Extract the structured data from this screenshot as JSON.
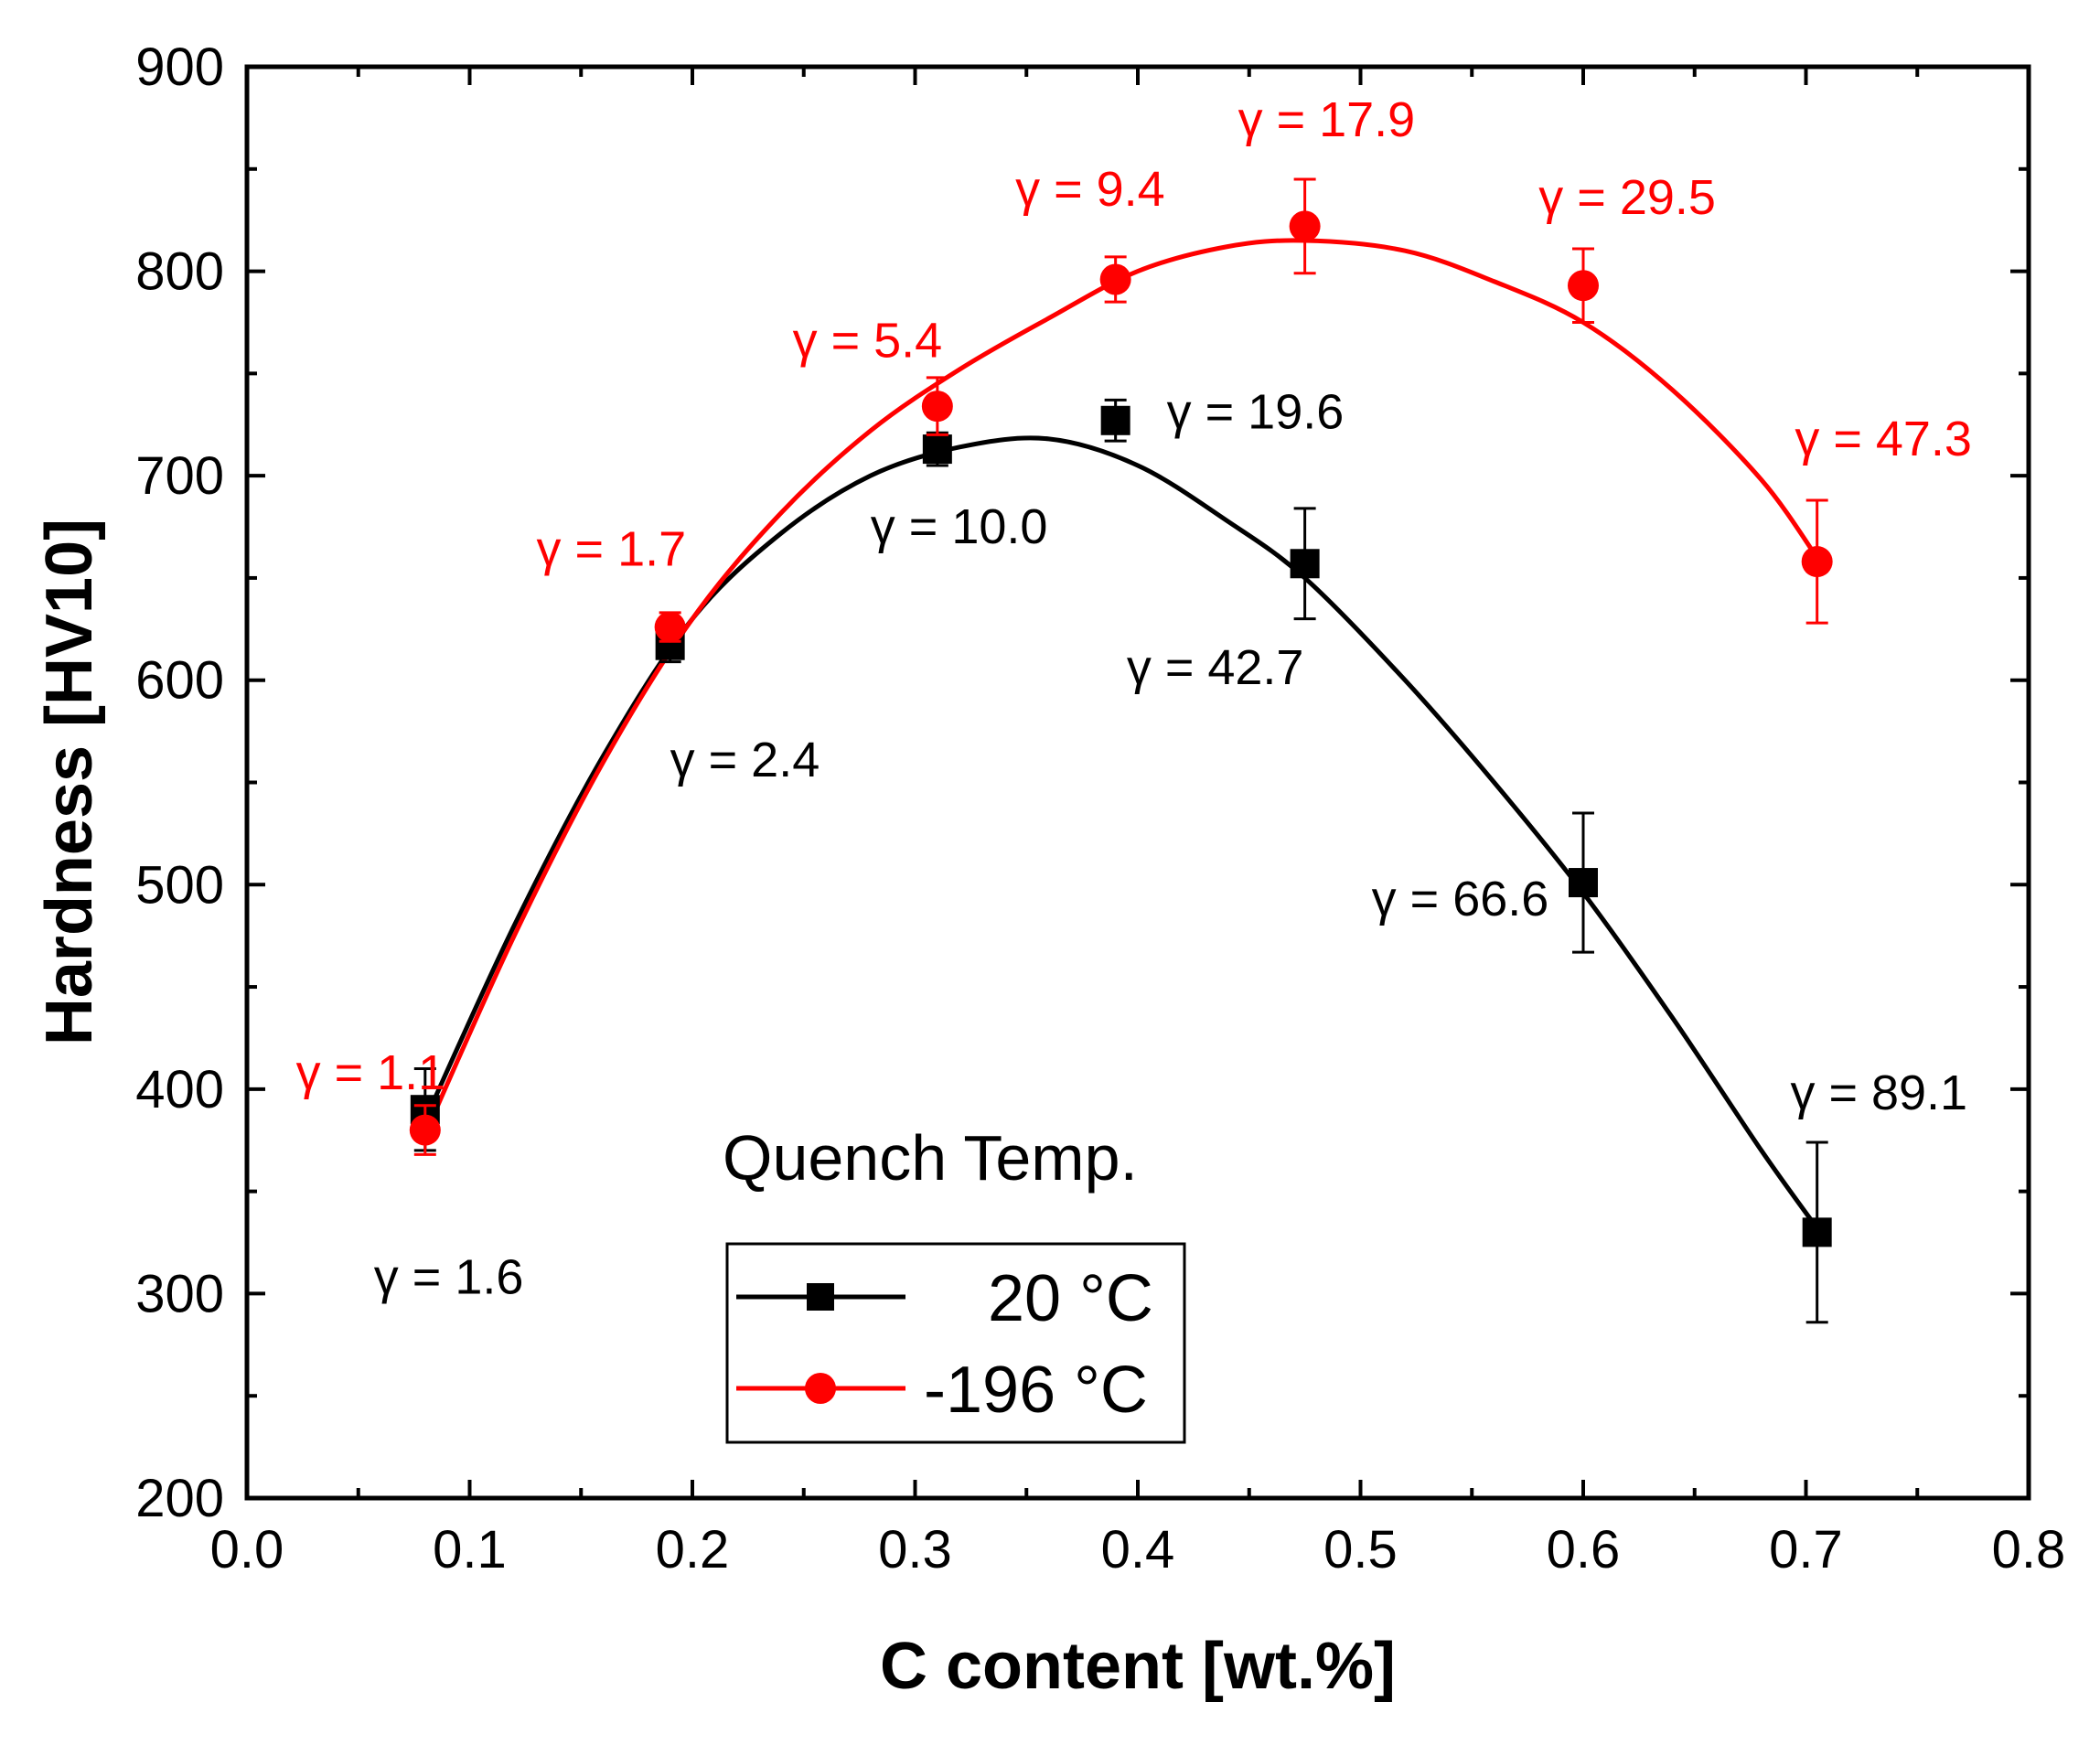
{
  "chart_data": {
    "type": "scatter",
    "xlabel": "C content [wt.%]",
    "ylabel": "Hardness [HV10]",
    "xlim": [
      0.0,
      0.8
    ],
    "ylim": [
      200,
      900
    ],
    "x_ticks": [
      "0.0",
      "0.1",
      "0.2",
      "0.3",
      "0.4",
      "0.5",
      "0.6",
      "0.7",
      "0.8"
    ],
    "y_ticks": [
      "200",
      "300",
      "400",
      "500",
      "600",
      "700",
      "800",
      "900"
    ],
    "legend_title": "Quench Temp.",
    "legend_position": "bottom-center",
    "series": [
      {
        "name": "20 °C",
        "color": "#000000",
        "marker": "square",
        "x": [
          0.08,
          0.19,
          0.31,
          0.39,
          0.475,
          0.6,
          0.705
        ],
        "y": [
          390,
          617,
          713,
          727,
          657,
          501,
          330
        ],
        "err": [
          20,
          8,
          8,
          10,
          27,
          34,
          44
        ],
        "fit": [
          [
            0.08,
            385
          ],
          [
            0.12,
            480
          ],
          [
            0.16,
            563
          ],
          [
            0.2,
            630
          ],
          [
            0.24,
            672
          ],
          [
            0.28,
            700
          ],
          [
            0.32,
            714
          ],
          [
            0.36,
            718
          ],
          [
            0.4,
            705
          ],
          [
            0.44,
            678
          ],
          [
            0.475,
            650
          ],
          [
            0.52,
            600
          ],
          [
            0.56,
            550
          ],
          [
            0.6,
            496
          ],
          [
            0.64,
            435
          ],
          [
            0.68,
            370
          ],
          [
            0.705,
            332
          ]
        ],
        "annotations": [
          {
            "text": "γ = 1.6",
            "x": 0.057,
            "y": 300
          },
          {
            "text": "γ = 2.4",
            "x": 0.19,
            "y": 553
          },
          {
            "text": "γ = 10.0",
            "x": 0.28,
            "y": 667
          },
          {
            "text": "γ = 19.6",
            "x": 0.413,
            "y": 723
          },
          {
            "text": "γ = 42.7",
            "x": 0.395,
            "y": 598
          },
          {
            "text": "γ = 66.6",
            "x": 0.505,
            "y": 485
          },
          {
            "text": "γ = 89.1",
            "x": 0.693,
            "y": 390
          }
        ]
      },
      {
        "name": "-196 °C",
        "color": "#ff0000",
        "marker": "circle",
        "x": [
          0.08,
          0.19,
          0.31,
          0.39,
          0.475,
          0.6,
          0.705
        ],
        "y": [
          380,
          626,
          734,
          796,
          822,
          793,
          658
        ],
        "err": [
          12,
          7,
          14,
          11,
          23,
          18,
          30
        ],
        "fit": [
          [
            0.08,
            378
          ],
          [
            0.12,
            475
          ],
          [
            0.16,
            560
          ],
          [
            0.2,
            630
          ],
          [
            0.24,
            682
          ],
          [
            0.28,
            722
          ],
          [
            0.32,
            752
          ],
          [
            0.36,
            777
          ],
          [
            0.4,
            800
          ],
          [
            0.44,
            812
          ],
          [
            0.475,
            815
          ],
          [
            0.52,
            810
          ],
          [
            0.56,
            795
          ],
          [
            0.6,
            775
          ],
          [
            0.64,
            742
          ],
          [
            0.68,
            698
          ],
          [
            0.705,
            660
          ]
        ],
        "annotations": [
          {
            "text": "γ = 1.1",
            "x": 0.022,
            "y": 400
          },
          {
            "text": "γ = 1.7",
            "x": 0.13,
            "y": 656
          },
          {
            "text": "γ = 5.4",
            "x": 0.245,
            "y": 758
          },
          {
            "text": "γ = 9.4",
            "x": 0.345,
            "y": 832
          },
          {
            "text": "γ = 17.9",
            "x": 0.445,
            "y": 866
          },
          {
            "text": "γ = 29.5",
            "x": 0.58,
            "y": 828
          },
          {
            "text": "γ = 47.3",
            "x": 0.695,
            "y": 710
          }
        ]
      }
    ]
  }
}
